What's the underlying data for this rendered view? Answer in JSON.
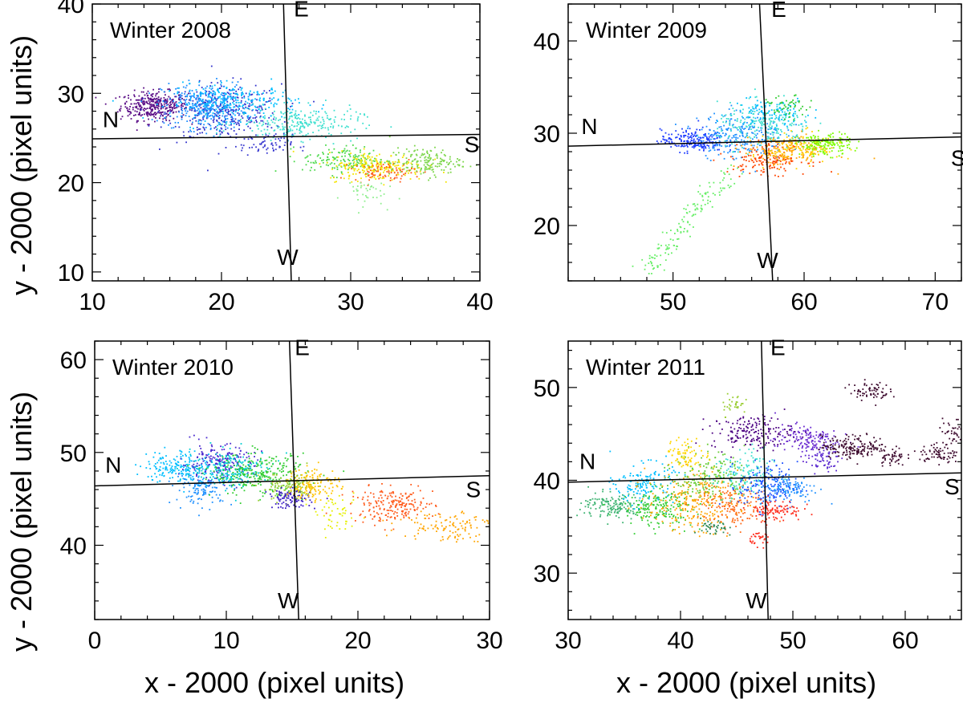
{
  "axis_labels": {
    "x": "x - 2000 (pixel units)",
    "y": "y - 2000 (pixel units)"
  },
  "chart_data": [
    {
      "type": "scatter",
      "title": "Winter 2008",
      "xlim": [
        10,
        40
      ],
      "ylim": [
        9,
        40
      ],
      "xticks": [
        10,
        20,
        30,
        40
      ],
      "yticks": [
        10,
        20,
        30,
        40
      ],
      "xlabel": "",
      "ylabel": "y - 2000 (pixel units)",
      "directions": {
        "N": [
          10.8,
          26.2
        ],
        "S": [
          38.8,
          23.4
        ],
        "E": [
          25.6,
          38.6
        ],
        "W": [
          24.3,
          10.8
        ]
      },
      "ns_line": {
        "from": [
          10,
          24.9
        ],
        "to": [
          40,
          25.4
        ]
      },
      "ew_line": {
        "from": [
          24.8,
          40
        ],
        "to": [
          25.4,
          9
        ]
      },
      "clusters": [
        {
          "cx": 14.8,
          "cy": 28.6,
          "sx": 1.3,
          "sy": 0.8,
          "color": "#5a0d86",
          "n": 350
        },
        {
          "cx": 20.2,
          "cy": 27.8,
          "sx": 2.2,
          "sy": 1.6,
          "color": "#3333cc",
          "n": 350
        },
        {
          "cx": 18.6,
          "cy": 28.6,
          "sx": 1.6,
          "sy": 1.3,
          "color": "#1e90ff",
          "n": 300
        },
        {
          "cx": 21.0,
          "cy": 29.0,
          "sx": 2.5,
          "sy": 1.0,
          "color": "#00bfff",
          "n": 250
        },
        {
          "cx": 26.0,
          "cy": 26.6,
          "sx": 2.4,
          "sy": 0.9,
          "color": "#40e0d0",
          "n": 250
        },
        {
          "cx": 23.5,
          "cy": 24.2,
          "sx": 1.0,
          "sy": 0.6,
          "color": "#3a3ad0",
          "n": 60
        },
        {
          "cx": 29.5,
          "cy": 22.5,
          "sx": 1.6,
          "sy": 0.8,
          "color": "#4cd94c",
          "n": 160
        },
        {
          "cx": 32.0,
          "cy": 21.8,
          "sx": 1.9,
          "sy": 0.8,
          "color": "#f5e400",
          "n": 220
        },
        {
          "cx": 32.6,
          "cy": 21.2,
          "sx": 1.2,
          "sy": 0.5,
          "color": "#ff5a1a",
          "n": 80
        },
        {
          "cx": 35.8,
          "cy": 22.3,
          "sx": 1.4,
          "sy": 0.8,
          "color": "#7cd64a",
          "n": 160
        },
        {
          "cx": 30.8,
          "cy": 19.0,
          "sx": 0.9,
          "sy": 0.8,
          "color": "#90ee90",
          "n": 40
        }
      ]
    },
    {
      "type": "scatter",
      "title": "Winter 2009",
      "xlim": [
        42,
        72
      ],
      "ylim": [
        14,
        44
      ],
      "xticks": [
        50,
        60,
        70
      ],
      "yticks": [
        20,
        30,
        40
      ],
      "xlabel": "",
      "ylabel": "",
      "directions": {
        "N": [
          43.0,
          29.9
        ],
        "S": [
          71.2,
          26.5
        ],
        "E": [
          57.5,
          42.6
        ],
        "W": [
          56.4,
          15.4
        ]
      },
      "ns_line": {
        "from": [
          42,
          28.6
        ],
        "to": [
          72,
          29.6
        ]
      },
      "ew_line": {
        "from": [
          56.6,
          44
        ],
        "to": [
          57.6,
          14
        ]
      },
      "clusters": [
        {
          "cx": 51.5,
          "cy": 29.2,
          "sx": 1.2,
          "sy": 0.6,
          "color": "#1e3cff",
          "n": 200
        },
        {
          "cx": 55.2,
          "cy": 29.8,
          "sx": 1.7,
          "sy": 1.3,
          "color": "#1e90ff",
          "n": 250
        },
        {
          "cx": 57.0,
          "cy": 30.8,
          "sx": 1.8,
          "sy": 1.2,
          "color": "#40e0d0",
          "n": 220
        },
        {
          "cx": 57.5,
          "cy": 32.2,
          "sx": 1.5,
          "sy": 0.8,
          "color": "#00bfff",
          "n": 100
        },
        {
          "cx": 57.3,
          "cy": 27.2,
          "sx": 1.5,
          "sy": 0.8,
          "color": "#ff4500",
          "n": 160
        },
        {
          "cx": 58.5,
          "cy": 28.0,
          "sx": 1.6,
          "sy": 0.8,
          "color": "#ffa500",
          "n": 150
        },
        {
          "cx": 60.0,
          "cy": 28.4,
          "sx": 1.4,
          "sy": 0.8,
          "color": "#ffd400",
          "n": 120
        },
        {
          "cx": 61.6,
          "cy": 28.8,
          "sx": 1.0,
          "sy": 0.6,
          "color": "#7cfc00",
          "n": 150
        },
        {
          "cx": 58.8,
          "cy": 32.8,
          "sx": 0.8,
          "sy": 0.6,
          "color": "#32cd32",
          "n": 50
        }
      ],
      "streaks": [
        {
          "from": [
            48.0,
            15.0
          ],
          "to": [
            54.8,
            26.5
          ],
          "color": "#66ee66",
          "n": 140,
          "spread": 0.5
        }
      ]
    },
    {
      "type": "scatter",
      "title": "Winter 2010",
      "xlim": [
        0,
        30
      ],
      "ylim": [
        32,
        62
      ],
      "xticks": [
        0,
        10,
        20,
        30
      ],
      "yticks": [
        40,
        50,
        60
      ],
      "xlabel": "x - 2000 (pixel units)",
      "ylabel": "y - 2000 (pixel units)",
      "directions": {
        "N": [
          0.8,
          47.8
        ],
        "S": [
          28.2,
          45.2
        ],
        "E": [
          15.2,
          60.5
        ],
        "W": [
          13.9,
          33.2
        ]
      },
      "ns_line": {
        "from": [
          0,
          46.4
        ],
        "to": [
          30,
          47.5
        ]
      },
      "ew_line": {
        "from": [
          14.8,
          62
        ],
        "to": [
          15.5,
          32
        ]
      },
      "clusters": [
        {
          "cx": 6.5,
          "cy": 48.4,
          "sx": 1.4,
          "sy": 0.9,
          "color": "#00bfff",
          "n": 200
        },
        {
          "cx": 9.3,
          "cy": 48.8,
          "sx": 1.4,
          "sy": 1.0,
          "color": "#4b2bcf",
          "n": 200
        },
        {
          "cx": 8.3,
          "cy": 46.2,
          "sx": 1.1,
          "sy": 0.9,
          "color": "#1e90ff",
          "n": 120
        },
        {
          "cx": 10.6,
          "cy": 48.2,
          "sx": 1.6,
          "sy": 1.0,
          "color": "#00ced1",
          "n": 200
        },
        {
          "cx": 12.5,
          "cy": 47.6,
          "sx": 1.8,
          "sy": 1.1,
          "color": "#32cd32",
          "n": 250
        },
        {
          "cx": 14.8,
          "cy": 46.2,
          "sx": 1.1,
          "sy": 0.8,
          "color": "#9acd32",
          "n": 120
        },
        {
          "cx": 14.8,
          "cy": 45.0,
          "sx": 0.8,
          "sy": 0.5,
          "color": "#3a1ac8",
          "n": 100
        },
        {
          "cx": 16.6,
          "cy": 46.6,
          "sx": 1.0,
          "sy": 0.9,
          "color": "#ffc400",
          "n": 150
        },
        {
          "cx": 18.5,
          "cy": 43.2,
          "sx": 0.8,
          "sy": 1.0,
          "color": "#e6f000",
          "n": 50
        },
        {
          "cx": 22.6,
          "cy": 44.3,
          "sx": 1.6,
          "sy": 0.9,
          "color": "#ff5a1a",
          "n": 200
        },
        {
          "cx": 26.8,
          "cy": 42.2,
          "sx": 1.8,
          "sy": 0.9,
          "color": "#ffa500",
          "n": 120
        }
      ]
    },
    {
      "type": "scatter",
      "title": "Winter 2011",
      "xlim": [
        30,
        65
      ],
      "ylim": [
        25,
        55
      ],
      "xticks": [
        30,
        40,
        50,
        60
      ],
      "yticks": [
        30,
        40,
        50
      ],
      "xlabel": "x - 2000 (pixel units)",
      "ylabel": "",
      "directions": {
        "N": [
          31.0,
          41.2
        ],
        "S": [
          63.5,
          38.5
        ],
        "E": [
          48.0,
          53.5
        ],
        "W": [
          45.8,
          26.2
        ]
      },
      "ns_line": {
        "from": [
          30,
          39.8
        ],
        "to": [
          65,
          40.8
        ]
      },
      "ew_line": {
        "from": [
          47.2,
          55
        ],
        "to": [
          47.8,
          25
        ]
      },
      "clusters": [
        {
          "cx": 34.0,
          "cy": 37.2,
          "sx": 1.4,
          "sy": 0.7,
          "color": "#3cb371",
          "n": 150
        },
        {
          "cx": 36.8,
          "cy": 39.6,
          "sx": 1.3,
          "sy": 1.1,
          "color": "#00bfff",
          "n": 150
        },
        {
          "cx": 38.0,
          "cy": 37.0,
          "sx": 1.6,
          "sy": 1.0,
          "color": "#32cd32",
          "n": 180
        },
        {
          "cx": 41.0,
          "cy": 37.6,
          "sx": 2.0,
          "sy": 1.6,
          "color": "#ffa500",
          "n": 250
        },
        {
          "cx": 42.6,
          "cy": 40.4,
          "sx": 1.6,
          "sy": 1.4,
          "color": "#66cc33",
          "n": 180
        },
        {
          "cx": 40.6,
          "cy": 42.8,
          "sx": 1.0,
          "sy": 0.8,
          "color": "#ffd700",
          "n": 80
        },
        {
          "cx": 44.6,
          "cy": 37.2,
          "sx": 1.4,
          "sy": 1.2,
          "color": "#ff6a1a",
          "n": 150
        },
        {
          "cx": 45.6,
          "cy": 40.5,
          "sx": 1.3,
          "sy": 1.4,
          "color": "#40e0d0",
          "n": 130
        },
        {
          "cx": 47.8,
          "cy": 39.4,
          "sx": 1.3,
          "sy": 1.3,
          "color": "#1e50ff",
          "n": 160
        },
        {
          "cx": 49.5,
          "cy": 39.2,
          "sx": 1.4,
          "sy": 0.8,
          "color": "#1e90ff",
          "n": 120
        },
        {
          "cx": 48.4,
          "cy": 36.8,
          "sx": 1.2,
          "sy": 0.6,
          "color": "#ff2a1a",
          "n": 100
        },
        {
          "cx": 46.4,
          "cy": 45.2,
          "sx": 1.8,
          "sy": 0.9,
          "color": "#4b0082",
          "n": 180
        },
        {
          "cx": 51.2,
          "cy": 44.4,
          "sx": 1.4,
          "sy": 0.8,
          "color": "#6a2bd0",
          "n": 150
        },
        {
          "cx": 52.6,
          "cy": 42.2,
          "sx": 0.8,
          "sy": 0.7,
          "color": "#5a2ad0",
          "n": 60
        },
        {
          "cx": 55.6,
          "cy": 43.6,
          "sx": 1.5,
          "sy": 0.6,
          "color": "#3d0a2e",
          "n": 180
        },
        {
          "cx": 56.8,
          "cy": 49.6,
          "sx": 0.9,
          "sy": 0.5,
          "color": "#3d0a2e",
          "n": 70
        },
        {
          "cx": 58.8,
          "cy": 42.4,
          "sx": 0.6,
          "sy": 0.4,
          "color": "#3d0a2e",
          "n": 40
        },
        {
          "cx": 63.0,
          "cy": 42.8,
          "sx": 0.9,
          "sy": 0.6,
          "color": "#3d0a2e",
          "n": 70
        },
        {
          "cx": 64.2,
          "cy": 45.2,
          "sx": 0.6,
          "sy": 0.7,
          "color": "#3d0a2e",
          "n": 40
        },
        {
          "cx": 43.0,
          "cy": 34.8,
          "sx": 0.6,
          "sy": 0.5,
          "color": "#2e8b57",
          "n": 40
        },
        {
          "cx": 44.8,
          "cy": 48.2,
          "sx": 0.6,
          "sy": 0.6,
          "color": "#9acd32",
          "n": 30
        },
        {
          "cx": 47.2,
          "cy": 33.8,
          "sx": 0.5,
          "sy": 0.4,
          "color": "#ff2a1a",
          "n": 30
        }
      ]
    }
  ]
}
